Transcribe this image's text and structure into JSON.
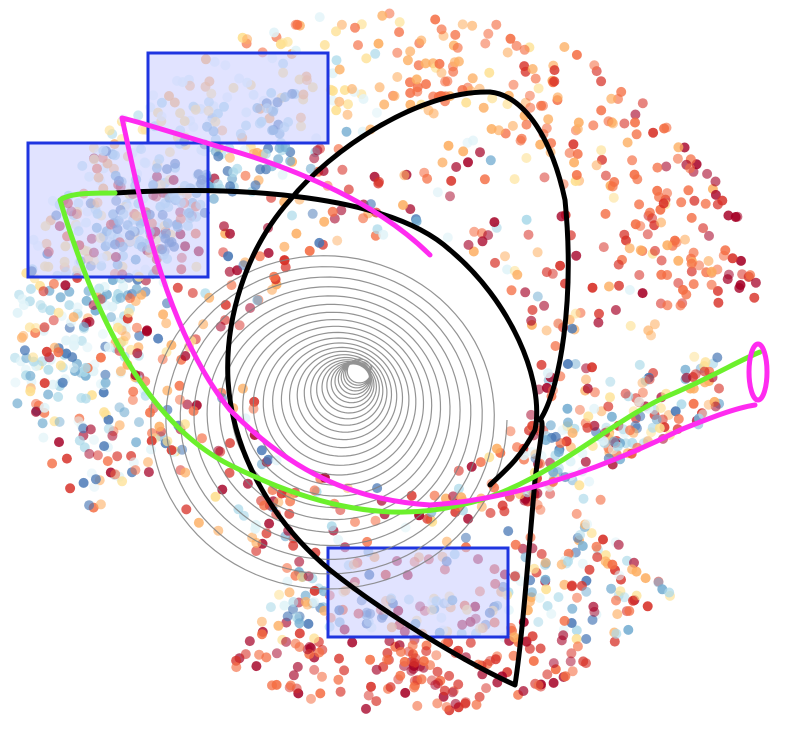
{
  "figure": {
    "background": "#ffffff",
    "point_palette": [
      "#a50026",
      "#d73027",
      "#f46d43",
      "#fdae61",
      "#fee090",
      "#e0f3f8",
      "#abd9e9",
      "#74add1",
      "#4575b4"
    ],
    "highlight_box_fill": "#c8ccff",
    "highlight_box_stroke": "#1f35e0",
    "highlight_box_count": 3,
    "curves": [
      {
        "color": "#000000",
        "style": "thick"
      },
      {
        "color": "#ff2bf0",
        "style": "thick"
      },
      {
        "color": "#6cf02c",
        "style": "thick"
      },
      {
        "color": "#808080",
        "style": "thin-spiral"
      }
    ]
  }
}
